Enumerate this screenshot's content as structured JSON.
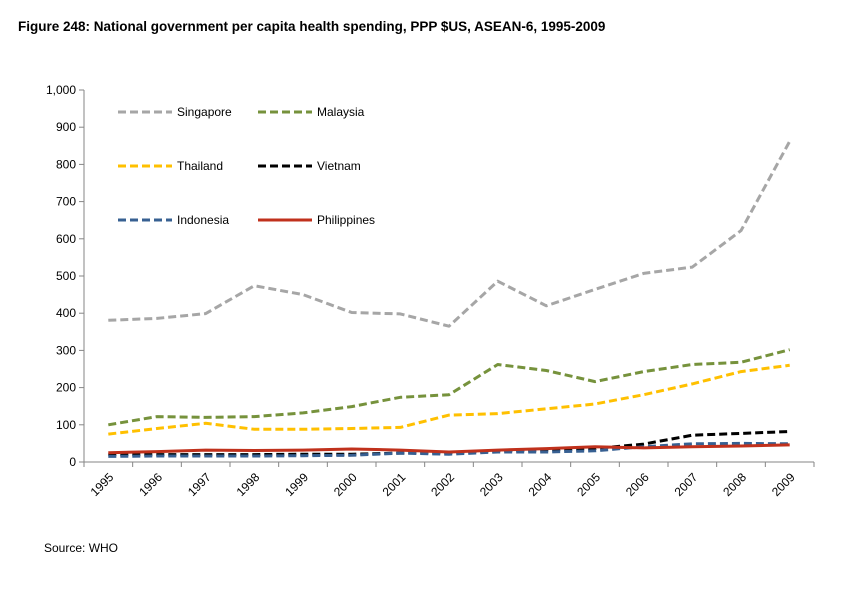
{
  "title": "Figure 248: National government per capita health spending, PPP $US, ASEAN-6, 1995-2009",
  "source": "Source: WHO",
  "chart_data": {
    "type": "line",
    "title": "Figure 248: National government per capita health spending, PPP $US, ASEAN-6, 1995-2009",
    "xlabel": "",
    "ylabel": "",
    "ylim": [
      0,
      1000
    ],
    "yticks": [
      0,
      100,
      200,
      300,
      400,
      500,
      600,
      700,
      800,
      900,
      1000
    ],
    "ytick_labels": [
      "0",
      "100",
      "200",
      "300",
      "400",
      "500",
      "600",
      "700",
      "800",
      "900",
      "1,000"
    ],
    "categories": [
      "1995",
      "1996",
      "1997",
      "1998",
      "1999",
      "2000",
      "2001",
      "2002",
      "2003",
      "2004",
      "2005",
      "2006",
      "2007",
      "2008",
      "2009"
    ],
    "grid": false,
    "legend_position": "top-left, inside plot",
    "series": [
      {
        "name": "Singapore",
        "color": "#a6a6a6",
        "dash": "dashed",
        "values": [
          381,
          386,
          399,
          474,
          450,
          402,
          398,
          365,
          486,
          420,
          464,
          507,
          524,
          622,
          862
        ]
      },
      {
        "name": "Malaysia",
        "color": "#76923c",
        "dash": "dashed",
        "values": [
          100,
          122,
          120,
          122,
          132,
          149,
          174,
          181,
          262,
          246,
          216,
          243,
          262,
          268,
          302
        ]
      },
      {
        "name": "Thailand",
        "color": "#ffc000",
        "dash": "dashed",
        "values": [
          75,
          90,
          104,
          88,
          88,
          90,
          93,
          126,
          130,
          143,
          156,
          181,
          210,
          243,
          260
        ]
      },
      {
        "name": "Vietnam",
        "color": "#000000",
        "dash": "dashed",
        "values": [
          20,
          20,
          20,
          20,
          21,
          21,
          24,
          25,
          30,
          32,
          36,
          48,
          72,
          77,
          82
        ]
      },
      {
        "name": "Indonesia",
        "color": "#376092",
        "dash": "dashed",
        "values": [
          15,
          16,
          16,
          16,
          17,
          18,
          24,
          21,
          27,
          27,
          30,
          41,
          49,
          50,
          49
        ]
      },
      {
        "name": "Philippines",
        "color": "#c0311c",
        "dash": "solid",
        "values": [
          25,
          28,
          32,
          31,
          32,
          35,
          32,
          27,
          32,
          36,
          41,
          38,
          41,
          43,
          46
        ]
      }
    ]
  }
}
